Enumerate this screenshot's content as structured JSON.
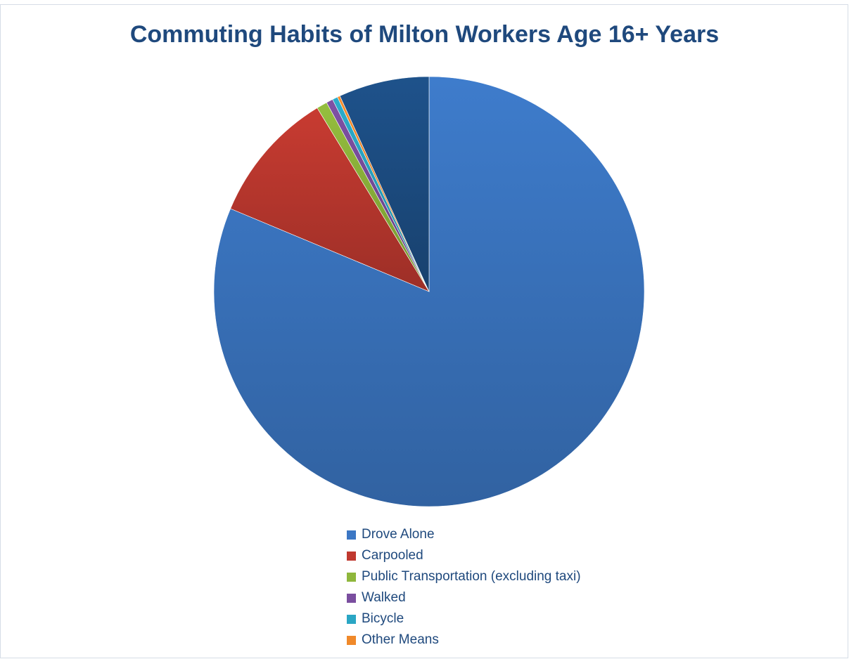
{
  "chart_data": {
    "type": "pie",
    "title": "Commuting Habits of Milton Workers Age 16+ Years",
    "categories": [
      "Drove Alone",
      "Carpooled",
      "Public Transportation (excluding taxi)",
      "Walked",
      "Bicycle",
      "Other Means",
      ""
    ],
    "values": [
      81.3,
      10.0,
      0.8,
      0.5,
      0.4,
      0.2,
      6.8
    ],
    "colors": [
      "#3c77c4",
      "#c0392f",
      "#8fb73c",
      "#7a4e9f",
      "#2aa6c4",
      "#f0892a",
      "#1d4f86"
    ],
    "legend_position": "bottom"
  }
}
